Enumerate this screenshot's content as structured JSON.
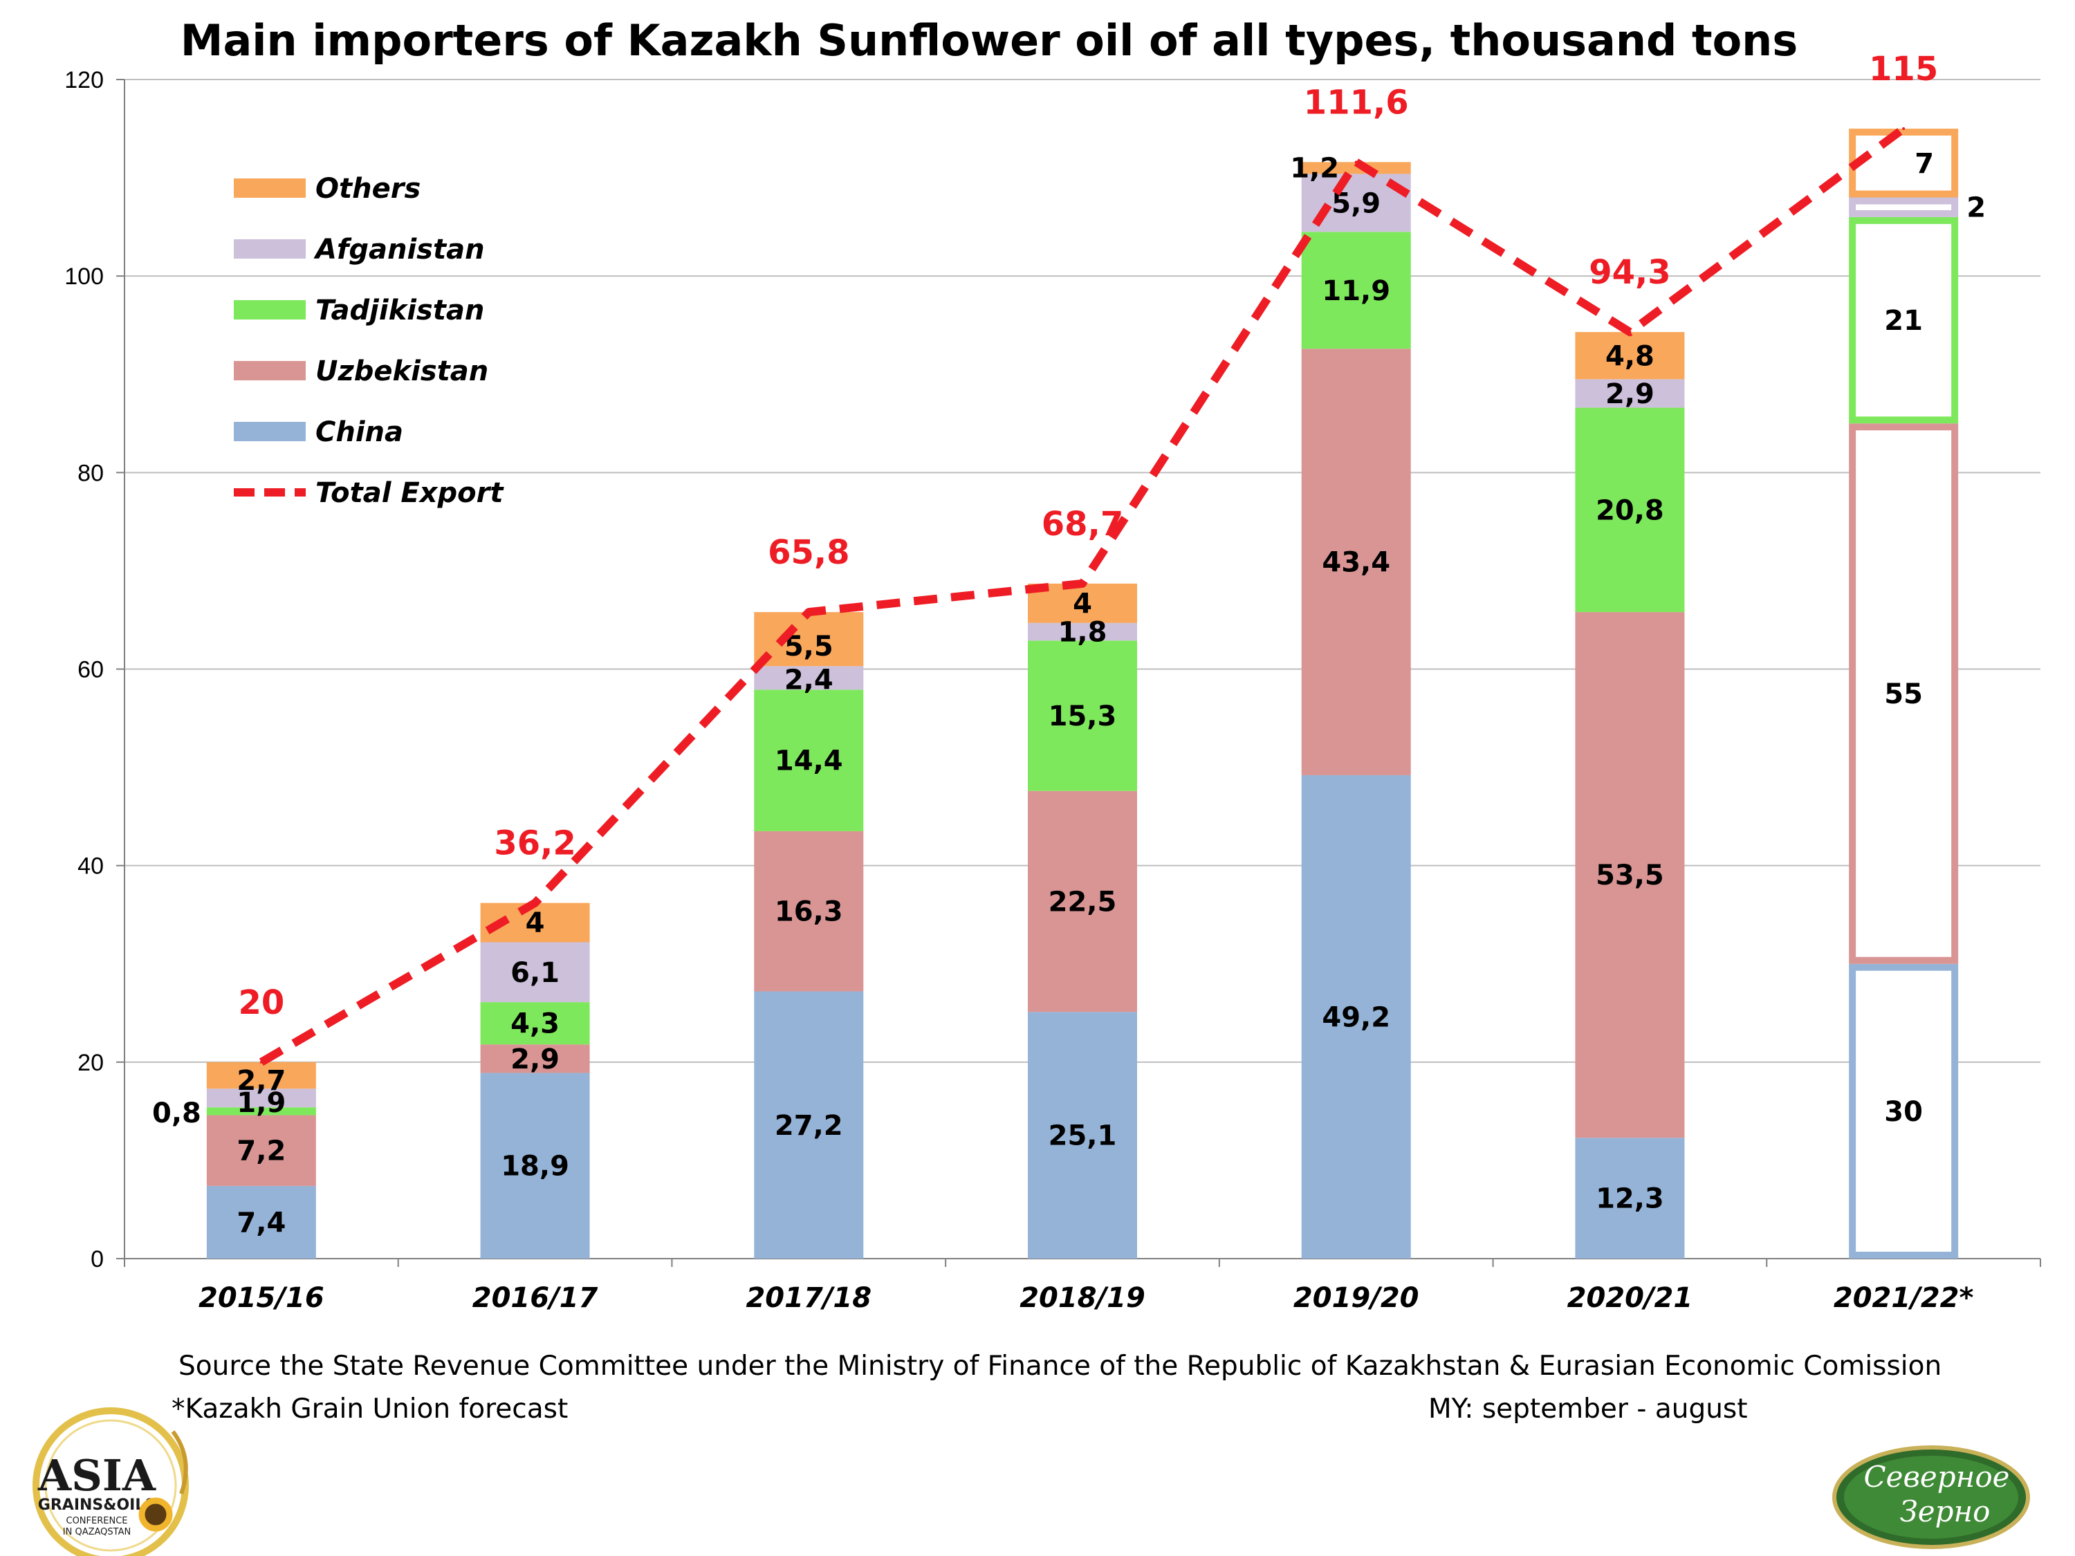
{
  "colors": {
    "china": "#95b3d7",
    "uzbekistan": "#d99594",
    "tadjikistan": "#7ee85c",
    "afganistan": "#ccc0da",
    "others": "#f9a75b",
    "total": "#ee1c24",
    "grid": "#bfbfbf"
  },
  "chart_data": {
    "type": "bar",
    "stacked": true,
    "title": "Main importers of Kazakh Sunflower oil of all types, thousand tons",
    "ylim": [
      0,
      120
    ],
    "yticks": [
      "0",
      "20",
      "40",
      "60",
      "80",
      "100",
      "120"
    ],
    "grid": true,
    "legend_position": "top-left",
    "categories": [
      "2015/16",
      "2016/17",
      "2017/18",
      "2018/19",
      "2019/20",
      "2020/21",
      "2021/22*"
    ],
    "series": [
      {
        "key": "china",
        "name": "China",
        "values": [
          7.4,
          18.9,
          27.2,
          25.1,
          49.2,
          12.3,
          30
        ],
        "labels": [
          "7,4",
          "18,9",
          "27,2",
          "25,1",
          "49,2",
          "12,3",
          "30"
        ]
      },
      {
        "key": "uzbekistan",
        "name": "Uzbekistan",
        "values": [
          7.2,
          2.9,
          16.3,
          22.5,
          43.4,
          53.5,
          55
        ],
        "labels": [
          "7,2",
          "2,9",
          "16,3",
          "22,5",
          "43,4",
          "53,5",
          "55"
        ]
      },
      {
        "key": "tadjikistan",
        "name": "Tadjikistan",
        "values": [
          0.8,
          4.3,
          14.4,
          15.3,
          11.9,
          20.8,
          21
        ],
        "labels": [
          "0,8",
          "4,3",
          "14,4",
          "15,3",
          "11,9",
          "20,8",
          "21"
        ]
      },
      {
        "key": "afganistan",
        "name": "Afganistan",
        "values": [
          1.9,
          6.1,
          2.4,
          1.8,
          5.9,
          2.9,
          2
        ],
        "labels": [
          "1,9",
          "6,1",
          "2,4",
          "1,8",
          "5,9",
          "2,9",
          "2"
        ]
      },
      {
        "key": "others",
        "name": "Others",
        "values": [
          2.7,
          4,
          5.5,
          4,
          1.2,
          4.8,
          7
        ],
        "labels": [
          "2,7",
          "4",
          "5,5",
          "4",
          "1,2",
          "4,8",
          "7"
        ]
      }
    ],
    "total": {
      "name": "Total Export",
      "values": [
        20,
        36.2,
        65.8,
        68.7,
        111.6,
        94.3,
        115
      ],
      "labels": [
        "20",
        "36,2",
        "65,8",
        "68,7",
        "111,6",
        "94,3",
        "115"
      ]
    },
    "forecast_index": 6
  },
  "footer": {
    "source": "Source the State Revenue Committee under the Ministry of Finance of the Republic of Kazakhstan & Eurasian Economic Comission",
    "forecast_note": "*Kazakh Grain Union forecast",
    "my_note": "MY: september - august"
  },
  "logos": {
    "left": {
      "big": "ASIA",
      "line1": "GRAINS&OILS",
      "line2": "CONFERENCE",
      "line3": "IN QAZAQSTAN"
    },
    "right": {
      "line1": "Северное",
      "line2": "Зерно"
    }
  }
}
